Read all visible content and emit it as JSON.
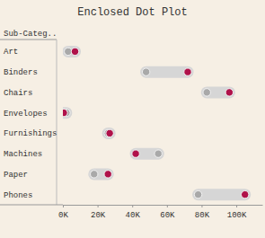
{
  "chart_data": {
    "type": "dumbbell",
    "title": "Enclosed Dot Plot",
    "ylabel": "Sub-Categ..",
    "categories": [
      "Art",
      "Binders",
      "Chairs",
      "Envelopes",
      "Furnishings",
      "Machines",
      "Paper",
      "Phones"
    ],
    "series": [
      {
        "color": "#a9a9a9",
        "values": [
          3000,
          48000,
          83000,
          2000,
          26000,
          55000,
          18000,
          78000
        ]
      },
      {
        "color": "#b0124a",
        "values": [
          7000,
          72000,
          96000,
          500,
          27000,
          42000,
          26000,
          105000
        ]
      }
    ],
    "xlim": [
      0,
      115000
    ],
    "xticks": [
      {
        "value": 0,
        "label": "0K"
      },
      {
        "value": 20000,
        "label": "20K"
      },
      {
        "value": 40000,
        "label": "40K"
      },
      {
        "value": 60000,
        "label": "60K"
      },
      {
        "value": 80000,
        "label": "80K"
      },
      {
        "value": 100000,
        "label": "100K"
      }
    ],
    "grid": false
  }
}
